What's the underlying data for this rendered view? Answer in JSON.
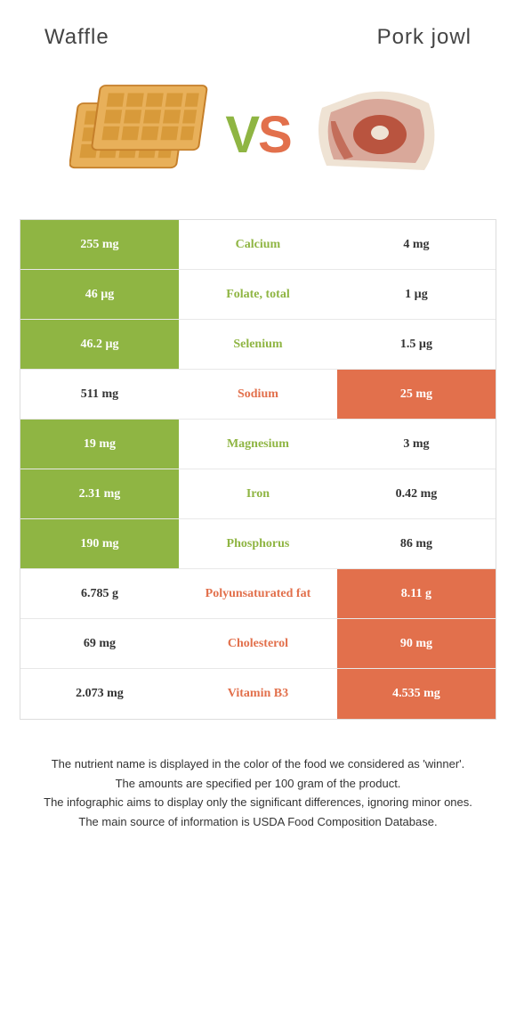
{
  "header": {
    "left_title": "Waffle",
    "right_title": "Pork jowl"
  },
  "vs": {
    "v": "V",
    "s": "S"
  },
  "colors": {
    "green": "#8fb543",
    "orange": "#e2704c",
    "row_border": "#e8e8e8",
    "text": "#333333",
    "background": "#ffffff"
  },
  "table": {
    "rows": [
      {
        "left": "255 mg",
        "label": "Calcium",
        "right": "4 mg",
        "winner": "left"
      },
      {
        "left": "46 µg",
        "label": "Folate, total",
        "right": "1 µg",
        "winner": "left"
      },
      {
        "left": "46.2 µg",
        "label": "Selenium",
        "right": "1.5 µg",
        "winner": "left"
      },
      {
        "left": "511 mg",
        "label": "Sodium",
        "right": "25 mg",
        "winner": "right"
      },
      {
        "left": "19 mg",
        "label": "Magnesium",
        "right": "3 mg",
        "winner": "left"
      },
      {
        "left": "2.31 mg",
        "label": "Iron",
        "right": "0.42 mg",
        "winner": "left"
      },
      {
        "left": "190 mg",
        "label": "Phosphorus",
        "right": "86 mg",
        "winner": "left"
      },
      {
        "left": "6.785 g",
        "label": "Polyunsaturated fat",
        "right": "8.11 g",
        "winner": "right"
      },
      {
        "left": "69 mg",
        "label": "Cholesterol",
        "right": "90 mg",
        "winner": "right"
      },
      {
        "left": "2.073 mg",
        "label": "Vitamin B3",
        "right": "4.535 mg",
        "winner": "right"
      }
    ]
  },
  "footnotes": [
    "The nutrient name is displayed in the color of the food we considered as 'winner'.",
    "The amounts are specified per 100 gram of the product.",
    "The infographic aims to display only the significant differences, ignoring minor ones.",
    "The main source of information is USDA Food Composition Database."
  ]
}
